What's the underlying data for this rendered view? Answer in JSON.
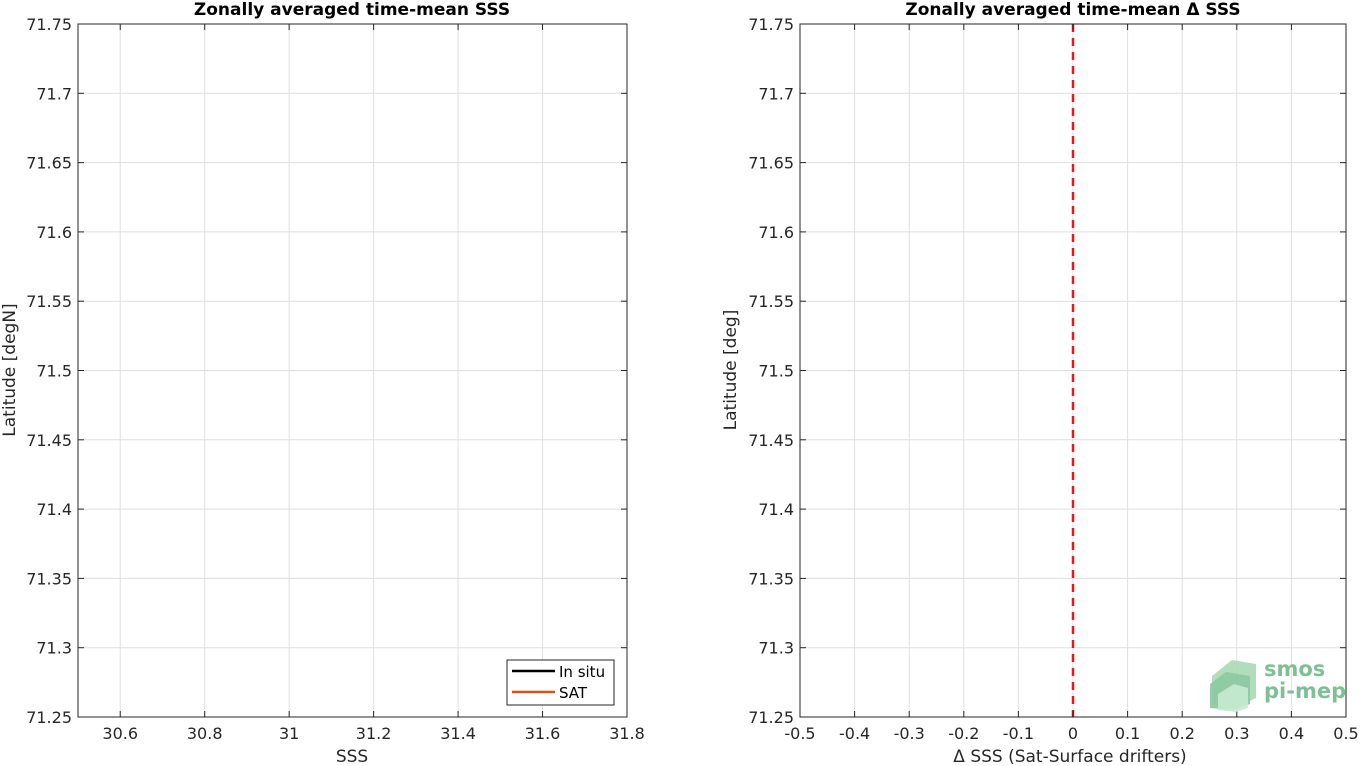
{
  "chart_data": [
    {
      "type": "line",
      "title": "Zonally averaged time-mean SSS",
      "xlabel": "SSS",
      "ylabel": "Latitude [degN]",
      "xlim": [
        30.5,
        31.8
      ],
      "ylim": [
        71.25,
        71.75
      ],
      "xticks": [
        30.6,
        30.8,
        31,
        31.2,
        31.4,
        31.6,
        31.8
      ],
      "xtick_labels": [
        "30.6",
        "30.8",
        "31",
        "31.2",
        "31.4",
        "31.6",
        "31.8"
      ],
      "yticks": [
        71.25,
        71.3,
        71.35,
        71.4,
        71.45,
        71.5,
        71.55,
        71.6,
        71.65,
        71.7,
        71.75
      ],
      "ytick_labels": [
        "71.25",
        "71.3",
        "71.35",
        "71.4",
        "71.45",
        "71.5",
        "71.55",
        "71.6",
        "71.65",
        "71.7",
        "71.75"
      ],
      "grid": true,
      "legend_position": "bottom-right",
      "series": [
        {
          "name": "In situ",
          "color": "#000000",
          "x": [],
          "y": []
        },
        {
          "name": "SAT",
          "color": "#d95319",
          "x": [],
          "y": []
        }
      ]
    },
    {
      "type": "line",
      "title": "Zonally averaged time-mean Δ SSS",
      "xlabel": "Δ SSS (Sat-Surface drifters)",
      "ylabel": "Latitude [deg]",
      "xlim": [
        -0.5,
        0.5
      ],
      "ylim": [
        71.25,
        71.75
      ],
      "xticks": [
        -0.5,
        -0.4,
        -0.3,
        -0.2,
        -0.1,
        0,
        0.1,
        0.2,
        0.3,
        0.4,
        0.5
      ],
      "xtick_labels": [
        "-0.5",
        "-0.4",
        "-0.3",
        "-0.2",
        "-0.1",
        "0",
        "0.1",
        "0.2",
        "0.3",
        "0.4",
        "0.5"
      ],
      "yticks": [
        71.25,
        71.3,
        71.35,
        71.4,
        71.45,
        71.5,
        71.55,
        71.6,
        71.65,
        71.7,
        71.75
      ],
      "ytick_labels": [
        "71.25",
        "71.3",
        "71.35",
        "71.4",
        "71.45",
        "71.5",
        "71.55",
        "71.6",
        "71.65",
        "71.7",
        "71.75"
      ],
      "grid": true,
      "reference_line": {
        "x": 0,
        "color": "#e31a1c",
        "style": "dashed"
      },
      "series": []
    }
  ],
  "logo": {
    "line1": "smos",
    "line2": "pi-mep",
    "color": "#7fbf95"
  }
}
